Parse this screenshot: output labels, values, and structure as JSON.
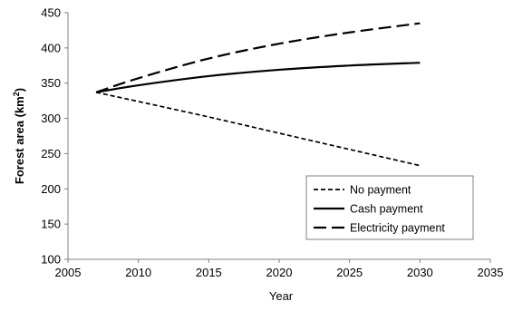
{
  "chart_data": {
    "type": "line",
    "title": "",
    "xlabel": "Year",
    "ylabel_main": "Forest area (km",
    "ylabel_sup": "2",
    "ylabel_close": ")",
    "xlim": [
      2005,
      2035
    ],
    "ylim": [
      100,
      450
    ],
    "xticks": [
      2005,
      2010,
      2015,
      2020,
      2025,
      2030,
      2035
    ],
    "yticks": [
      100,
      150,
      200,
      250,
      300,
      350,
      400,
      450
    ],
    "grid": false,
    "legend_position": "bottom-right",
    "series": [
      {
        "name": "No payment",
        "style": "short-dash",
        "x": [
          2007,
          2010,
          2015,
          2020,
          2025,
          2030
        ],
        "y": [
          337,
          324,
          302,
          279,
          256,
          233
        ]
      },
      {
        "name": "Cash payment",
        "style": "solid",
        "x": [
          2007,
          2010,
          2015,
          2020,
          2025,
          2030
        ],
        "y": [
          337,
          347,
          360,
          369,
          375,
          379
        ]
      },
      {
        "name": "Electricity payment",
        "style": "long-dash",
        "x": [
          2007,
          2010,
          2015,
          2020,
          2025,
          2030
        ],
        "y": [
          337,
          357,
          385,
          406,
          422,
          435
        ]
      }
    ]
  },
  "colors": {
    "line": "#000000",
    "axis": "#808080",
    "tick_text": "#000000"
  }
}
